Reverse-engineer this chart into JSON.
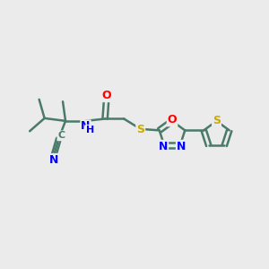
{
  "bg_color": "#ebebeb",
  "bond_color": "#4a7a6a",
  "bond_width": 1.8,
  "atom_colors": {
    "N": "#0000ff",
    "O": "#ff0000",
    "S": "#ccaa00",
    "C": "#4a7a6a"
  },
  "font_size": 9
}
